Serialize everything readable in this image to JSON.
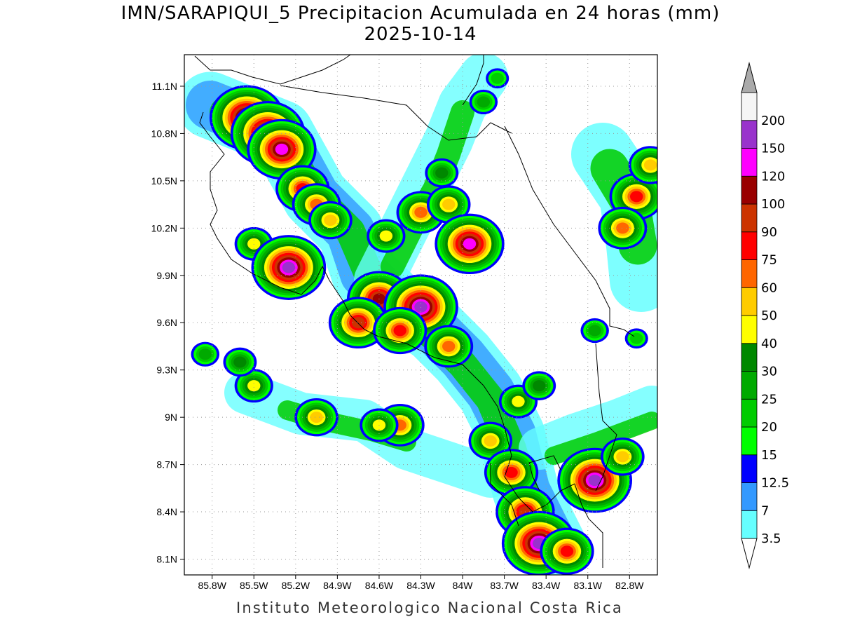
{
  "title": "IMN/SARAPIQUI_5 Precipitacion Acumulada en 24 horas (mm)",
  "date": "2025-10-14",
  "footer": "Instituto Meteorologico Nacional Costa Rica",
  "map": {
    "lon_range": [
      -86.0,
      -82.6
    ],
    "lat_range": [
      8.0,
      11.3
    ],
    "x_ticks": [
      {
        "lon": -85.8,
        "label": "85.8W"
      },
      {
        "lon": -85.5,
        "label": "85.5W"
      },
      {
        "lon": -85.2,
        "label": "85.2W"
      },
      {
        "lon": -84.9,
        "label": "84.9W"
      },
      {
        "lon": -84.6,
        "label": "84.6W"
      },
      {
        "lon": -84.3,
        "label": "84.3W"
      },
      {
        "lon": -84.0,
        "label": "84W"
      },
      {
        "lon": -83.7,
        "label": "83.7W"
      },
      {
        "lon": -83.4,
        "label": "83.4W"
      },
      {
        "lon": -83.1,
        "label": "83.1W"
      },
      {
        "lon": -82.8,
        "label": "82.8W"
      }
    ],
    "y_ticks": [
      {
        "lat": 11.1,
        "label": "11.1N"
      },
      {
        "lat": 10.8,
        "label": "10.8N"
      },
      {
        "lat": 10.5,
        "label": "10.5N"
      },
      {
        "lat": 10.2,
        "label": "10.2N"
      },
      {
        "lat": 9.9,
        "label": "9.9N"
      },
      {
        "lat": 9.6,
        "label": "9.6N"
      },
      {
        "lat": 9.3,
        "label": "9.3N"
      },
      {
        "lat": 9.0,
        "label": "9N"
      },
      {
        "lat": 8.7,
        "label": "8.7N"
      },
      {
        "lat": 8.4,
        "label": "8.4N"
      },
      {
        "lat": 8.1,
        "label": "8.1N"
      }
    ],
    "grid": "dotted"
  },
  "colorbar": {
    "units": "mm",
    "levels": [
      {
        "label": "3.5",
        "color": "#66ffff"
      },
      {
        "label": "7",
        "color": "#3399ff"
      },
      {
        "label": "12.5",
        "color": "#0000ff"
      },
      {
        "label": "15",
        "color": "#00ff00"
      },
      {
        "label": "20",
        "color": "#00cc00"
      },
      {
        "label": "25",
        "color": "#00aa00"
      },
      {
        "label": "30",
        "color": "#008800"
      },
      {
        "label": "40",
        "color": "#ffff00"
      },
      {
        "label": "50",
        "color": "#ffcc00"
      },
      {
        "label": "60",
        "color": "#ff6600"
      },
      {
        "label": "75",
        "color": "#ff0000"
      },
      {
        "label": "90",
        "color": "#cc3300"
      },
      {
        "label": "100",
        "color": "#990000"
      },
      {
        "label": "120",
        "color": "#ff00ff"
      },
      {
        "label": "150",
        "color": "#9933cc"
      },
      {
        "label": "200",
        "color": "#f5f5f5"
      }
    ],
    "top_arrow_color": "#aaaaaa",
    "bottom_arrow_color": "#ffffff"
  },
  "precip_cells": [
    {
      "lon": -85.55,
      "lat": 10.9,
      "mm": 150
    },
    {
      "lon": -85.4,
      "lat": 10.8,
      "mm": 150
    },
    {
      "lon": -85.3,
      "lat": 10.7,
      "mm": 120
    },
    {
      "lon": -85.15,
      "lat": 10.45,
      "mm": 75
    },
    {
      "lon": -85.05,
      "lat": 10.35,
      "mm": 60
    },
    {
      "lon": -84.95,
      "lat": 10.25,
      "mm": 50
    },
    {
      "lon": -85.5,
      "lat": 10.1,
      "mm": 40
    },
    {
      "lon": -85.25,
      "lat": 9.95,
      "mm": 150
    },
    {
      "lon": -84.6,
      "lat": 9.75,
      "mm": 100
    },
    {
      "lon": -84.75,
      "lat": 9.6,
      "mm": 90
    },
    {
      "lon": -84.3,
      "lat": 9.7,
      "mm": 150
    },
    {
      "lon": -84.45,
      "lat": 9.55,
      "mm": 75
    },
    {
      "lon": -84.1,
      "lat": 9.45,
      "mm": 60
    },
    {
      "lon": -84.3,
      "lat": 10.3,
      "mm": 60
    },
    {
      "lon": -84.1,
      "lat": 10.35,
      "mm": 50
    },
    {
      "lon": -83.95,
      "lat": 10.1,
      "mm": 120
    },
    {
      "lon": -84.55,
      "lat": 10.15,
      "mm": 40
    },
    {
      "lon": -85.05,
      "lat": 9.0,
      "mm": 50
    },
    {
      "lon": -84.45,
      "lat": 8.95,
      "mm": 60
    },
    {
      "lon": -84.6,
      "lat": 8.95,
      "mm": 40
    },
    {
      "lon": -83.8,
      "lat": 8.85,
      "mm": 50
    },
    {
      "lon": -83.65,
      "lat": 8.65,
      "mm": 75
    },
    {
      "lon": -83.55,
      "lat": 8.4,
      "mm": 90
    },
    {
      "lon": -83.45,
      "lat": 8.2,
      "mm": 150
    },
    {
      "lon": -83.25,
      "lat": 8.15,
      "mm": 75
    },
    {
      "lon": -83.05,
      "lat": 8.6,
      "mm": 150
    },
    {
      "lon": -82.85,
      "lat": 8.75,
      "mm": 50
    },
    {
      "lon": -82.75,
      "lat": 10.4,
      "mm": 75
    },
    {
      "lon": -82.85,
      "lat": 10.2,
      "mm": 60
    },
    {
      "lon": -82.65,
      "lat": 10.6,
      "mm": 50
    },
    {
      "lon": -83.6,
      "lat": 9.1,
      "mm": 40
    },
    {
      "lon": -83.45,
      "lat": 9.2,
      "mm": 30
    },
    {
      "lon": -85.5,
      "lat": 9.2,
      "mm": 40
    },
    {
      "lon": -85.85,
      "lat": 9.4,
      "mm": 25
    },
    {
      "lon": -85.6,
      "lat": 9.35,
      "mm": 30
    },
    {
      "lon": -83.85,
      "lat": 11.0,
      "mm": 25
    },
    {
      "lon": -83.75,
      "lat": 11.15,
      "mm": 20
    },
    {
      "lon": -84.15,
      "lat": 10.55,
      "mm": 30
    },
    {
      "lon": -83.05,
      "lat": 9.55,
      "mm": 25
    },
    {
      "lon": -82.75,
      "lat": 9.5,
      "mm": 20
    }
  ]
}
